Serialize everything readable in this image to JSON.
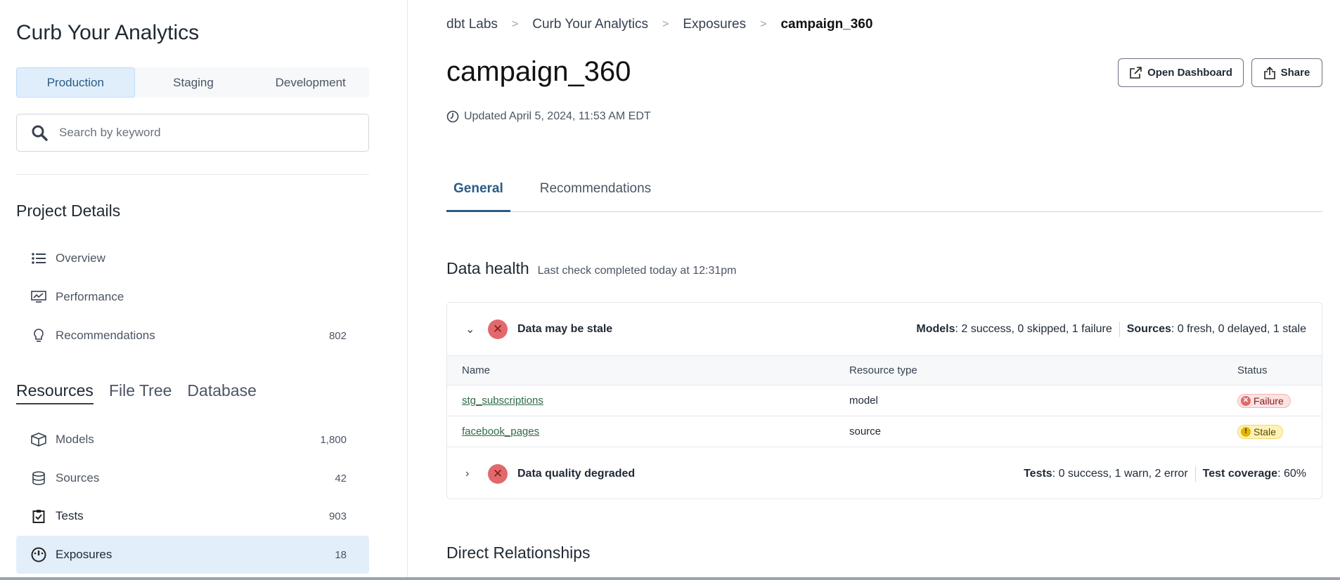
{
  "sidebar": {
    "title": "Curb Your Analytics",
    "env_tabs": [
      {
        "label": "Production",
        "active": true
      },
      {
        "label": "Staging"
      },
      {
        "label": "Development"
      }
    ],
    "search_placeholder": "Search by keyword",
    "project_details_heading": "Project Details",
    "project_items": [
      {
        "label": "Overview",
        "icon": "list-icon"
      },
      {
        "label": "Performance",
        "icon": "monitor-chart-icon"
      },
      {
        "label": "Recommendations",
        "icon": "lightbulb-icon",
        "count": "802"
      }
    ],
    "resource_tabs": [
      {
        "label": "Resources",
        "active": true
      },
      {
        "label": "File Tree"
      },
      {
        "label": "Database"
      }
    ],
    "resource_items": [
      {
        "label": "Models",
        "icon": "cube-icon",
        "count": "1,800"
      },
      {
        "label": "Sources",
        "icon": "database-icon",
        "count": "42"
      },
      {
        "label": "Tests",
        "icon": "clipboard-check-icon",
        "count": "903"
      },
      {
        "label": "Exposures",
        "icon": "gauge-icon",
        "count": "18",
        "active": true
      }
    ]
  },
  "breadcrumb": [
    "dbt Labs",
    "Curb Your Analytics",
    "Exposures",
    "campaign_360"
  ],
  "page": {
    "title": "campaign_360",
    "updated": "Updated April 5, 2024, 11:53 AM EDT",
    "open_dashboard": "Open Dashboard",
    "share": "Share",
    "tabs": [
      {
        "label": "General",
        "active": true
      },
      {
        "label": "Recommendations"
      }
    ]
  },
  "data_health": {
    "heading": "Data health",
    "subtitle": "Last check completed today at 12:31pm",
    "groups": [
      {
        "name": "Data may be stale",
        "expanded": true,
        "stats": [
          {
            "key": "Models",
            "value": ": 2 success, 0 skipped, 1 failure"
          },
          {
            "key": "Sources",
            "value": ": 0 fresh, 0 delayed, 1 stale"
          }
        ]
      },
      {
        "name": "Data quality degraded",
        "expanded": false,
        "stats": [
          {
            "key": "Tests",
            "value": ": 0 success, 1 warn, 2 error"
          },
          {
            "key": "Test coverage",
            "value": ": 60%"
          }
        ]
      }
    ],
    "table": {
      "headers": [
        "Name",
        "Resource type",
        "Status"
      ],
      "rows": [
        {
          "name": "stg_subscriptions",
          "type": "model",
          "status": "Failure"
        },
        {
          "name": "facebook_pages",
          "type": "source",
          "status": "Stale"
        }
      ]
    }
  },
  "direct_relationships": "Direct Relationships",
  "colors": {
    "accent": "#2b5b84",
    "error": "#e2696b",
    "link": "#2f6b45",
    "stale": "#fdf2b8"
  }
}
